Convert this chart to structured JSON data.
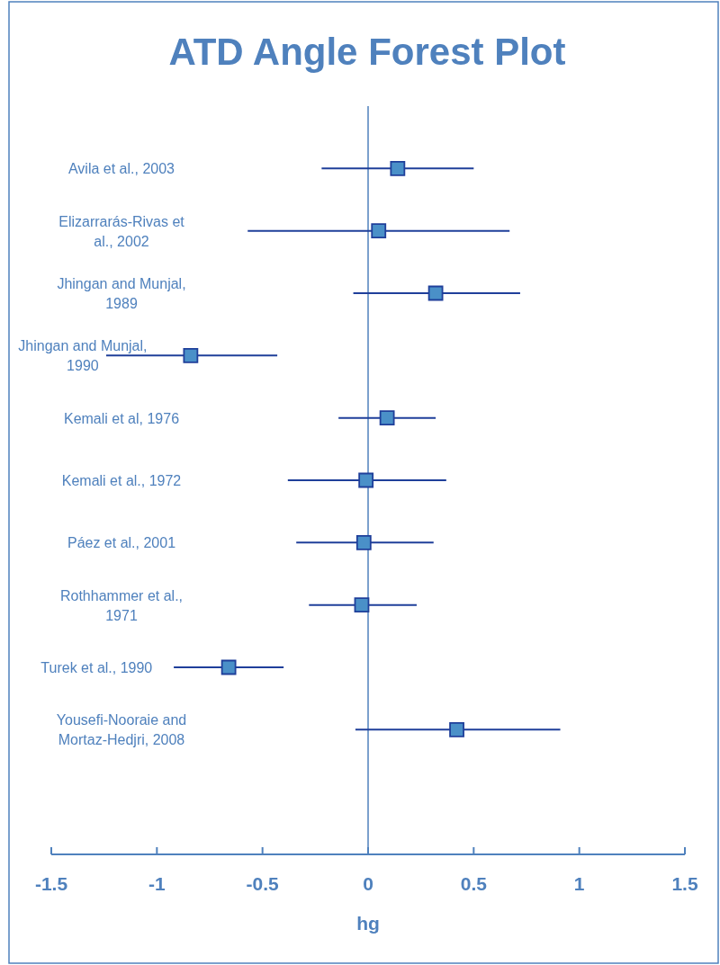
{
  "chart_data": {
    "type": "scatter",
    "title": "ATD Angle Forest Plot",
    "xlabel": "hg",
    "orientation": "horizontal",
    "categories": [
      "Avila et al., 2003",
      "Elizarrarás-Rivas et al., 2002",
      "Jhingan and Munjal, 1989",
      "Jhingan and Munjal, 1990",
      "Kemali et al, 1976",
      "Kemali et al., 1972",
      "Páez et al., 2001",
      "Rothhammer et al., 1971",
      "Turek et al., 1990",
      "Yousefi-Nooraie and Mortaz-Hedjri, 2008"
    ],
    "series": [
      {
        "color": "#4a90c8",
        "values": [
          0.14,
          0.05,
          0.32,
          -0.84,
          0.09,
          -0.01,
          -0.02,
          -0.03,
          -0.66,
          0.42
        ],
        "errors": [
          [
            -0.22,
            0.5
          ],
          [
            -0.57,
            0.67
          ],
          [
            -0.07,
            0.72
          ],
          [
            -1.24,
            -0.43
          ],
          [
            -0.14,
            0.32
          ],
          [
            -0.38,
            0.37
          ],
          [
            -0.34,
            0.31
          ],
          [
            -0.28,
            0.23
          ],
          [
            -0.92,
            -0.4
          ],
          [
            -0.06,
            0.91
          ]
        ]
      }
    ],
    "xlim": [
      -1.5,
      1.5
    ],
    "xticks": [
      -1.5,
      -1,
      -0.5,
      0,
      0.5,
      1,
      1.5
    ],
    "ref_lines": [
      {
        "axis": "x",
        "value": 0,
        "color": "#4f81bd"
      }
    ],
    "marker": "square",
    "grid": false
  }
}
